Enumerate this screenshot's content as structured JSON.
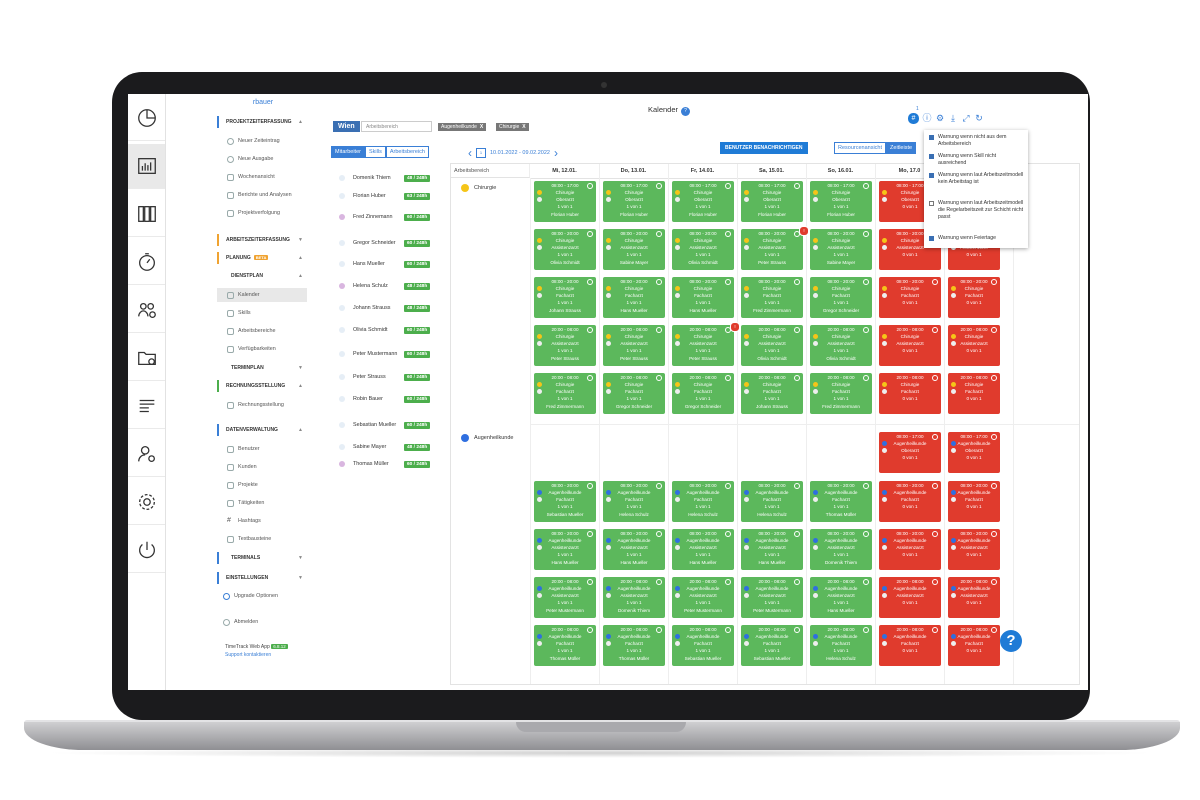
{
  "user": "rbauer",
  "page_title": "Kalender",
  "help_label": "?",
  "location_button": "Wien",
  "area_input_placeholder": "Arbeitsbereich",
  "filter_chips": [
    "Augenheilkunde",
    "Chirurgie"
  ],
  "chip_close": "X",
  "list_tabs": [
    "Mitarbeiter",
    "Skills",
    "Arbeitsbereich"
  ],
  "date_range": "10.01.2022 - 09.02.2022",
  "notify_button": "BENUTZER BENACHRICHTIGEN",
  "view_toggle": [
    "Resourcenansicht",
    "Zeitleiste"
  ],
  "nav": {
    "sections": {
      "projekt": "PROJEKTZEITERFASSUNG",
      "arbeitszeit": "ARBEITSZEITERFASSUNG",
      "planung": "PLANUNG",
      "beta": "BETA",
      "dienstplan": "DIENSTPLAN",
      "terminplan": "TERMINPLAN",
      "rechnung": "RECHNUNGSSTELLUNG",
      "daten": "DATENVERWALTUNG",
      "terminals": "TERMINALS",
      "einstellungen": "EINSTELLUNGEN"
    },
    "projekt_items": [
      "Neuer Zeiteintrag",
      "Neue Ausgabe",
      "Wochenansicht",
      "Berichte und Analysen",
      "Projektverfolgung"
    ],
    "dienstplan_items": [
      "Kalender",
      "Skills",
      "Arbeitsbereiche",
      "Verfügbarkeiten"
    ],
    "rechnung_items": [
      "Rechnungsstellung"
    ],
    "daten_items": [
      "Benutzer",
      "Kunden",
      "Projekte",
      "Tätigkeiten",
      "Hashtags",
      "Textbausteine"
    ],
    "upgrade": "Upgrade Optionen",
    "logout": "Abmelden",
    "app_name": "TimeTrack Web App",
    "version": "6.8.12",
    "support": "Support kontaktieren"
  },
  "employees": [
    {
      "name": "Domenik Thiem",
      "hours": "48 / 248h"
    },
    {
      "name": "Florian Huber",
      "hours": "63 / 248h"
    },
    {
      "name": "Fred Zinnemann",
      "hours": "60 / 248h"
    },
    {
      "name": "Gregor Schneider",
      "hours": "60 / 248h"
    },
    {
      "name": "Hans Mueller",
      "hours": "60 / 248h"
    },
    {
      "name": "Helena Schulz",
      "hours": "48 / 248h"
    },
    {
      "name": "Johann Strauss",
      "hours": "48 / 248h"
    },
    {
      "name": "Olivia Schmidt",
      "hours": "60 / 248h"
    },
    {
      "name": "Peter Mustermann",
      "hours": "60 / 248h"
    },
    {
      "name": "Peter Strauss",
      "hours": "60 / 248h"
    },
    {
      "name": "Robin Bauer",
      "hours": "60 / 248h"
    },
    {
      "name": "Sebastian Mueller",
      "hours": "60 / 248h"
    },
    {
      "name": "Sabine Mayer",
      "hours": "48 / 248h"
    },
    {
      "name": "Thomas Müller",
      "hours": "60 / 248h"
    }
  ],
  "grid": {
    "area_header": "Arbeitsbereich",
    "days": [
      "Mi, 12.01.",
      "Do, 13.01.",
      "Fr, 14.01.",
      "Sa, 15.01.",
      "So, 16.01.",
      "Mo, 17.0"
    ],
    "areas": [
      {
        "name": "Chirurgie",
        "color": "#f5c518"
      },
      {
        "name": "Augenheilkunde",
        "color": "#2f6fe0"
      }
    ]
  },
  "shift_fraction_label": "1 von 1",
  "shift_times": {
    "day": "08:00 - 17:00",
    "late": "08:00 - 20:00",
    "night": "20:00 - 08:00",
    "mixed": "08:00 - 20:00"
  },
  "shift_rows": [
    {
      "area": "Chirurgie",
      "time": "08:00 - 17:00",
      "role": "Oberarzt",
      "people": [
        "Florian Huber",
        "Florian Huber",
        "Florian Huber",
        "Florian Huber",
        "Florian Huber",
        "0 von 1",
        "0 von 1"
      ],
      "status": [
        "g",
        "g",
        "g",
        "g",
        "g",
        "r",
        "r"
      ]
    },
    {
      "area": "Chirurgie",
      "time": "08:00 - 20:00",
      "role": "Assistenzarzt",
      "people": [
        "Olivia Schmidt",
        "Sabine Mayer",
        "Olivia Schmidt",
        "Peter Strauss",
        "Sabine Mayer",
        "",
        ""
      ],
      "status": [
        "g",
        "g",
        "g",
        "g",
        "g",
        "r",
        "r"
      ]
    },
    {
      "area": "Chirurgie",
      "time": "08:00 - 20:00",
      "role": "Facharzt",
      "people": [
        "Johann Strauss",
        "Hans Mueller",
        "Hans Mueller",
        "Fred Zimmermann",
        "Gregor Schneider",
        "",
        ""
      ],
      "status": [
        "g",
        "g",
        "g",
        "g",
        "g",
        "r",
        "r"
      ]
    },
    {
      "area": "Chirurgie",
      "time": "20:00 - 08:00",
      "role": "Assistenzarzt",
      "people": [
        "Peter Strauss",
        "Peter Strauss",
        "Peter Strauss",
        "Olivia Schmidt",
        "Olivia Schmidt",
        "",
        ""
      ],
      "status": [
        "g",
        "g",
        "g",
        "g",
        "g",
        "r",
        "r"
      ]
    },
    {
      "area": "Chirurgie",
      "time": "20:00 - 08:00",
      "role": "Facharzt",
      "people": [
        "Fred Zimmermann",
        "Gregor Schneider",
        "Gregor Schneider",
        "Johann Strauss",
        "Fred Zimmermann",
        "",
        ""
      ],
      "status": [
        "g",
        "g",
        "g",
        "g",
        "g",
        "r",
        "r"
      ]
    }
  ],
  "augen_rows": [
    {
      "time": "08:00 - 17:00",
      "role": "Oberarzt",
      "people": [
        "",
        "",
        "",
        "",
        "",
        "",
        ""
      ],
      "status": [
        "-",
        "-",
        "-",
        "-",
        "-",
        "r",
        "r"
      ]
    },
    {
      "time": "08:00 - 20:00",
      "role": "Facharzt",
      "people": [
        "Sebastian Mueller",
        "Helena Schulz",
        "Helena Schulz",
        "Helena Schulz",
        "Thomas Müller",
        "",
        ""
      ],
      "status": [
        "g",
        "g",
        "g",
        "g",
        "g",
        "r",
        "r"
      ]
    },
    {
      "time": "08:00 - 20:00",
      "role": "Assistenzarzt",
      "people": [
        "Hans Mueller",
        "Hans Mueller",
        "Hans Mueller",
        "Hans Mueller",
        "Domenik Thiem",
        "",
        ""
      ],
      "status": [
        "g",
        "g",
        "g",
        "g",
        "g",
        "r",
        "r"
      ]
    },
    {
      "time": "20:00 - 08:00",
      "role": "Assistenzarzt",
      "people": [
        "Peter Mustermann",
        "Domenik Thiem",
        "Peter Mustermann",
        "Peter Mustermann",
        "Hans Mueller",
        "",
        ""
      ],
      "status": [
        "g",
        "g",
        "g",
        "g",
        "g",
        "r",
        "r"
      ]
    },
    {
      "time": "20:00 - 08:00",
      "role": "Facharzt",
      "people": [
        "Thomas Müller",
        "Thomas Müller",
        "Sebastian Mueller",
        "Sebastian Mueller",
        "Helena Schulz",
        "",
        ""
      ],
      "status": [
        "g",
        "g",
        "g",
        "g",
        "g",
        "r",
        "r"
      ]
    }
  ],
  "warning_badge": "!",
  "toolbar_badge": "1",
  "warnings": [
    {
      "label": "Warnung wenn nicht aus dem Arbeitsbereich",
      "checked": true
    },
    {
      "label": "Warnung wenn Skill nicht ausreichend",
      "checked": true
    },
    {
      "label": "Warnung wenn laut Arbeitszeitmodell kein Arbeitstag ist",
      "checked": true
    },
    {
      "label": "Warnung wenn laut Arbeitszeitmodell die Regelarbeitszeit zur Schicht nicht passt",
      "checked": false
    },
    {
      "label": "Warnung wenn Feiertage",
      "checked": true
    }
  ]
}
